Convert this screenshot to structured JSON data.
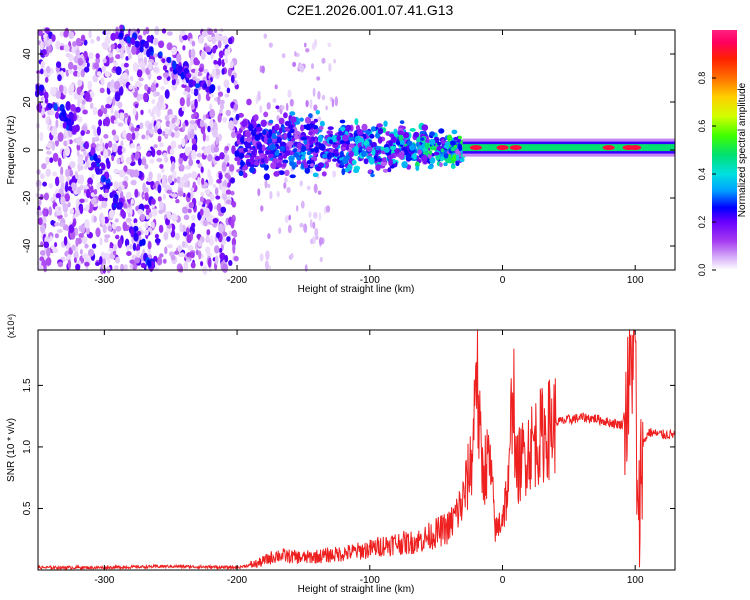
{
  "title": "C2E1.2026.001.07.41.G13",
  "chart_data": [
    {
      "type": "heatmap",
      "xlabel": "Height of straight line (km)",
      "ylabel": "Frequency (Hz)",
      "xlim": [
        -350,
        130
      ],
      "ylim": [
        -50,
        50
      ],
      "x_ticks": [
        -300,
        -200,
        -100,
        0,
        100
      ],
      "y_ticks": [
        -40,
        -20,
        0,
        20,
        40
      ],
      "colorbar": {
        "label": "Normalized spectral amplitude",
        "range": [
          0.0,
          1.0
        ],
        "ticks": [
          "0.0",
          "0.2",
          "0.4",
          "0.6",
          "0.8"
        ],
        "colormap": [
          "#ffffff",
          "#d8b4f8",
          "#a63cf0",
          "#6a00ff",
          "#0000ff",
          "#00a0ff",
          "#00e0e0",
          "#00e070",
          "#40ff00",
          "#d0ff00",
          "#ffd000",
          "#ff7000",
          "#ff2000",
          "#ff0060",
          "#ff2080"
        ]
      },
      "features": [
        {
          "name": "doppler_line",
          "x": [
            -30,
            130
          ],
          "center_hz": [
            1,
            1
          ],
          "peak_amplitude": 0.9
        },
        {
          "name": "turbulent_band",
          "x": [
            -200,
            -30
          ],
          "center_hz": [
            3,
            0
          ],
          "peak_amplitude": 0.45
        },
        {
          "name": "diagonal_trace",
          "points": [
            [
              -350,
              25
            ],
            [
              -315,
              5
            ],
            [
              -290,
              -22
            ],
            [
              -262,
              -50
            ]
          ]
        },
        {
          "name": "diagonal_trace_2",
          "points": [
            [
              -290,
              50
            ],
            [
              -250,
              35
            ],
            [
              -220,
              25
            ]
          ]
        }
      ]
    },
    {
      "type": "line",
      "xlabel": "Height of straight line (km)",
      "ylabel": "SNR (10 * v/v)",
      "multiplier": "(x10⁴)",
      "xlim": [
        -350,
        130
      ],
      "ylim": [
        0,
        1.95
      ],
      "x_ticks": [
        -300,
        -200,
        -100,
        0,
        100
      ],
      "y_ticks": [
        "0.5",
        "1.0",
        "1.5"
      ],
      "series": [
        {
          "color": "#ee1f1f",
          "x": [
            -350,
            -300,
            -250,
            -200,
            -185,
            -170,
            -150,
            -130,
            -110,
            -100,
            -90,
            -80,
            -70,
            -60,
            -50,
            -40,
            -30,
            -25,
            -22,
            -20,
            -18,
            -15,
            -10,
            -5,
            0,
            5,
            8,
            10,
            15,
            20,
            30,
            40,
            50,
            60,
            70,
            80,
            90,
            95,
            98,
            100,
            102,
            105,
            110,
            120,
            130
          ],
          "y": [
            0.02,
            0.02,
            0.03,
            0.02,
            0.05,
            0.12,
            0.1,
            0.12,
            0.15,
            0.17,
            0.2,
            0.22,
            0.22,
            0.25,
            0.3,
            0.35,
            0.55,
            0.8,
            1.0,
            1.9,
            1.2,
            0.8,
            0.9,
            0.3,
            0.45,
            0.7,
            1.7,
            0.8,
            0.9,
            1.0,
            1.1,
            1.2,
            1.22,
            1.24,
            1.23,
            1.2,
            1.18,
            1.4,
            1.8,
            1.95,
            0.1,
            1.0,
            1.12,
            1.1,
            1.1
          ]
        }
      ]
    }
  ]
}
